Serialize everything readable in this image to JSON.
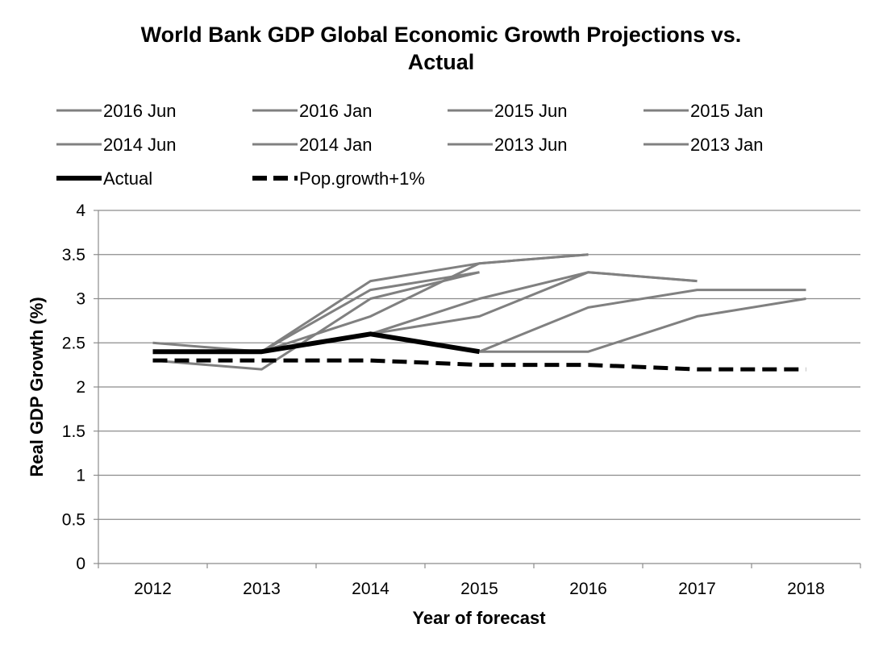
{
  "chart_data": {
    "type": "line",
    "title": "World Bank GDP Global Economic Growth Projections vs. Actual",
    "title_lines": [
      "World Bank GDP Global Economic Growth Projections vs.",
      "Actual"
    ],
    "xlabel": "Year of forecast",
    "ylabel": "Real GDP Growth (%)",
    "categories": [
      "2012",
      "2013",
      "2014",
      "2015",
      "2016",
      "2017",
      "2018"
    ],
    "ylim": [
      0,
      4
    ],
    "yticks": [
      "0",
      "0.5",
      "1",
      "1.5",
      "2",
      "2.5",
      "3",
      "3.5",
      "4"
    ],
    "ytick_values": [
      0,
      0.5,
      1,
      1.5,
      2,
      2.5,
      3,
      3.5,
      4
    ],
    "grid": true,
    "legend_position": "top",
    "series": [
      {
        "name": "2016 Jun",
        "color": "#808080",
        "style": "solid",
        "values": [
          null,
          null,
          null,
          2.4,
          2.4,
          2.8,
          3.0
        ]
      },
      {
        "name": "2016 Jan",
        "color": "#808080",
        "style": "solid",
        "values": [
          null,
          null,
          null,
          2.4,
          2.9,
          3.1,
          3.1
        ]
      },
      {
        "name": "2015 Jun",
        "color": "#808080",
        "style": "solid",
        "values": [
          null,
          null,
          2.6,
          2.8,
          3.3,
          3.2,
          null
        ]
      },
      {
        "name": "2015 Jan",
        "color": "#808080",
        "style": "solid",
        "values": [
          null,
          null,
          2.6,
          3.0,
          3.3,
          3.2,
          null
        ]
      },
      {
        "name": "2014 Jun",
        "color": "#808080",
        "style": "solid",
        "values": [
          null,
          2.4,
          2.8,
          3.4,
          3.5,
          null,
          null
        ]
      },
      {
        "name": "2014 Jan",
        "color": "#808080",
        "style": "solid",
        "values": [
          null,
          2.4,
          3.2,
          3.4,
          3.5,
          null,
          null
        ]
      },
      {
        "name": "2013 Jun",
        "color": "#808080",
        "style": "solid",
        "values": [
          2.3,
          2.2,
          3.0,
          3.3,
          null,
          null,
          null
        ]
      },
      {
        "name": "2013 Jan",
        "color": "#808080",
        "style": "solid",
        "values": [
          2.5,
          2.4,
          3.1,
          3.3,
          null,
          null,
          null
        ]
      },
      {
        "name": "Actual",
        "color": "#000000",
        "style": "solid-bold",
        "values": [
          2.4,
          2.4,
          2.6,
          2.4,
          null,
          null,
          null
        ]
      },
      {
        "name": "Pop.growth+1%",
        "color": "#000000",
        "style": "dashed",
        "values": [
          2.3,
          2.3,
          2.3,
          2.25,
          2.25,
          2.2,
          2.2
        ]
      }
    ]
  }
}
